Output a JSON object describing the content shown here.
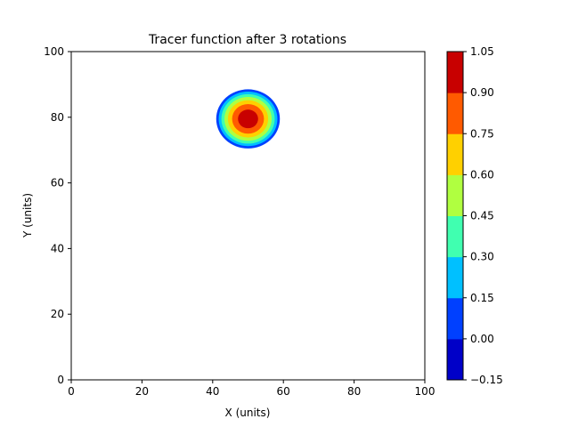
{
  "chart_data": {
    "type": "contourf",
    "title": "Tracer function after 3 rotations",
    "xlabel": "X (units)",
    "ylabel": "Y (units)",
    "xlim": [
      0,
      100
    ],
    "ylim": [
      0,
      100
    ],
    "xticks": [
      0,
      20,
      40,
      60,
      80,
      100
    ],
    "yticks": [
      0,
      20,
      40,
      60,
      80,
      100
    ],
    "grid": false,
    "blob": {
      "center_x": 50,
      "center_y": 79.5,
      "peak_value": 1.0,
      "support_radius": 9
    },
    "contour_levels": [
      -0.15,
      0.0,
      0.15,
      0.3,
      0.45,
      0.6,
      0.75,
      0.9,
      1.05
    ],
    "colorbar": {
      "ticks": [
        "−0.15",
        "0.00",
        "0.15",
        "0.30",
        "0.45",
        "0.60",
        "0.75",
        "0.90",
        "1.05"
      ],
      "colors": [
        "#0000c8",
        "#0040ff",
        "#00c0ff",
        "#40ffb0",
        "#b0ff40",
        "#ffd000",
        "#ff5a00",
        "#c80000"
      ]
    }
  }
}
